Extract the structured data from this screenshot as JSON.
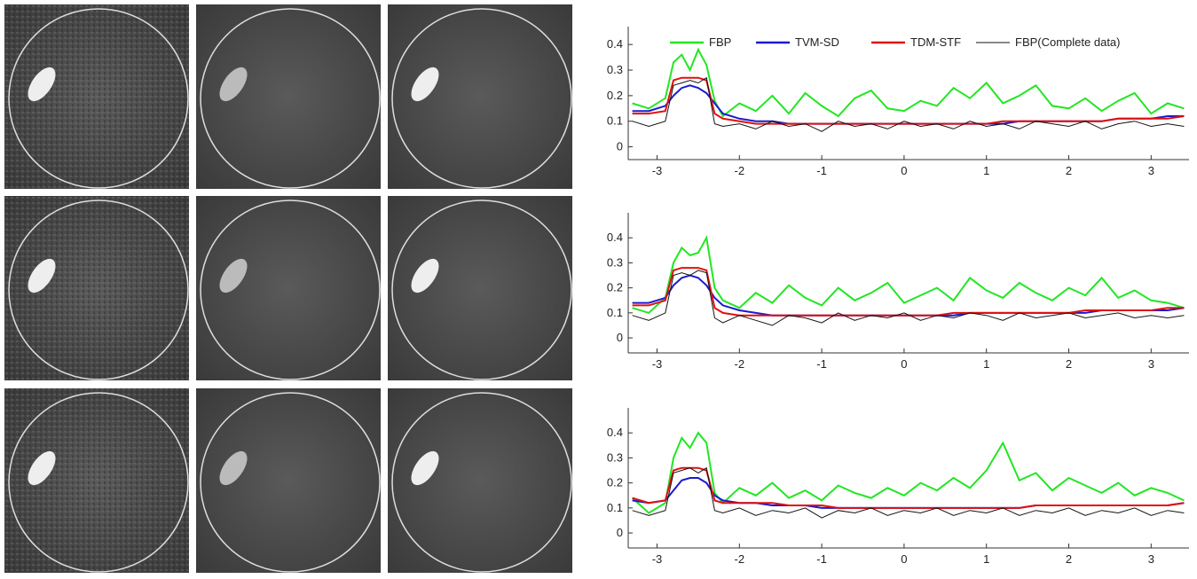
{
  "chart_data": [
    {
      "type": "line",
      "legend": "upper center",
      "x": [
        -3.3,
        -3.1,
        -2.9,
        -2.8,
        -2.7,
        -2.6,
        -2.5,
        -2.4,
        -2.3,
        -2.2,
        -2.0,
        -1.8,
        -1.6,
        -1.4,
        -1.2,
        -1.0,
        -0.8,
        -0.6,
        -0.4,
        -0.2,
        0,
        0.2,
        0.4,
        0.6,
        0.8,
        1.0,
        1.2,
        1.4,
        1.6,
        1.8,
        2.0,
        2.2,
        2.4,
        2.6,
        2.8,
        3.0,
        3.2,
        3.4
      ],
      "xlim": [
        -3.35,
        3.46
      ],
      "xticks": [
        -3,
        -2,
        -1,
        0,
        1,
        2,
        3
      ],
      "ylim": [
        -0.05,
        0.47
      ],
      "yticks": [
        0,
        0.1,
        0.2,
        0.3,
        0.4
      ],
      "series": [
        {
          "name": "FBP",
          "color": "#22e622",
          "values": [
            0.17,
            0.15,
            0.19,
            0.33,
            0.36,
            0.3,
            0.38,
            0.32,
            0.18,
            0.12,
            0.17,
            0.14,
            0.2,
            0.13,
            0.21,
            0.16,
            0.12,
            0.19,
            0.22,
            0.15,
            0.14,
            0.18,
            0.16,
            0.23,
            0.19,
            0.25,
            0.17,
            0.2,
            0.24,
            0.16,
            0.15,
            0.19,
            0.14,
            0.18,
            0.21,
            0.13,
            0.17,
            0.15
          ]
        },
        {
          "name": "TVM-SD",
          "color": "#1a1ad0",
          "values": [
            0.14,
            0.14,
            0.16,
            0.2,
            0.23,
            0.24,
            0.23,
            0.21,
            0.17,
            0.13,
            0.11,
            0.1,
            0.1,
            0.09,
            0.09,
            0.09,
            0.09,
            0.09,
            0.09,
            0.09,
            0.09,
            0.09,
            0.09,
            0.09,
            0.09,
            0.09,
            0.09,
            0.1,
            0.1,
            0.1,
            0.1,
            0.1,
            0.1,
            0.11,
            0.11,
            0.11,
            0.12,
            0.12
          ]
        },
        {
          "name": "TDM-STF",
          "color": "#e01010",
          "values": [
            0.13,
            0.13,
            0.14,
            0.26,
            0.27,
            0.27,
            0.27,
            0.26,
            0.13,
            0.11,
            0.1,
            0.09,
            0.09,
            0.09,
            0.09,
            0.09,
            0.09,
            0.09,
            0.09,
            0.09,
            0.09,
            0.09,
            0.09,
            0.09,
            0.09,
            0.09,
            0.1,
            0.1,
            0.1,
            0.1,
            0.1,
            0.1,
            0.1,
            0.11,
            0.11,
            0.11,
            0.11,
            0.12
          ]
        },
        {
          "name": "FBP(Complete data)",
          "color": "#111111",
          "values": [
            0.1,
            0.08,
            0.1,
            0.24,
            0.25,
            0.26,
            0.25,
            0.27,
            0.09,
            0.08,
            0.09,
            0.07,
            0.1,
            0.08,
            0.09,
            0.06,
            0.1,
            0.08,
            0.09,
            0.07,
            0.1,
            0.08,
            0.09,
            0.07,
            0.1,
            0.08,
            0.09,
            0.07,
            0.1,
            0.09,
            0.08,
            0.1,
            0.07,
            0.09,
            0.1,
            0.08,
            0.09,
            0.08
          ]
        }
      ]
    },
    {
      "type": "line",
      "x": [
        -3.3,
        -3.1,
        -2.9,
        -2.8,
        -2.7,
        -2.6,
        -2.5,
        -2.4,
        -2.3,
        -2.2,
        -2.0,
        -1.8,
        -1.6,
        -1.4,
        -1.2,
        -1.0,
        -0.8,
        -0.6,
        -0.4,
        -0.2,
        0,
        0.2,
        0.4,
        0.6,
        0.8,
        1.0,
        1.2,
        1.4,
        1.6,
        1.8,
        2.0,
        2.2,
        2.4,
        2.6,
        2.8,
        3.0,
        3.2,
        3.4
      ],
      "xlim": [
        -3.35,
        3.46
      ],
      "xticks": [
        -3,
        -2,
        -1,
        0,
        1,
        2,
        3
      ],
      "ylim": [
        -0.06,
        0.5
      ],
      "yticks": [
        0,
        0.1,
        0.2,
        0.3,
        0.4
      ],
      "series": [
        {
          "color": "#22e622",
          "values": [
            0.12,
            0.1,
            0.16,
            0.3,
            0.36,
            0.33,
            0.34,
            0.4,
            0.2,
            0.15,
            0.12,
            0.18,
            0.14,
            0.21,
            0.16,
            0.13,
            0.2,
            0.15,
            0.18,
            0.22,
            0.14,
            0.17,
            0.2,
            0.15,
            0.24,
            0.19,
            0.16,
            0.22,
            0.18,
            0.15,
            0.2,
            0.17,
            0.24,
            0.16,
            0.19,
            0.15,
            0.14,
            0.12
          ]
        },
        {
          "color": "#1a1ad0",
          "values": [
            0.14,
            0.14,
            0.16,
            0.21,
            0.24,
            0.25,
            0.24,
            0.21,
            0.16,
            0.13,
            0.11,
            0.1,
            0.09,
            0.09,
            0.09,
            0.09,
            0.09,
            0.09,
            0.09,
            0.09,
            0.09,
            0.09,
            0.09,
            0.09,
            0.1,
            0.1,
            0.1,
            0.1,
            0.1,
            0.1,
            0.1,
            0.1,
            0.11,
            0.11,
            0.11,
            0.11,
            0.11,
            0.12
          ]
        },
        {
          "color": "#e01010",
          "values": [
            0.13,
            0.13,
            0.15,
            0.27,
            0.28,
            0.28,
            0.28,
            0.27,
            0.12,
            0.1,
            0.09,
            0.09,
            0.09,
            0.09,
            0.09,
            0.09,
            0.09,
            0.09,
            0.09,
            0.09,
            0.09,
            0.09,
            0.09,
            0.1,
            0.1,
            0.1,
            0.1,
            0.1,
            0.1,
            0.1,
            0.1,
            0.11,
            0.11,
            0.11,
            0.11,
            0.11,
            0.12,
            0.12
          ]
        },
        {
          "color": "#111111",
          "values": [
            0.09,
            0.07,
            0.1,
            0.25,
            0.26,
            0.25,
            0.27,
            0.26,
            0.08,
            0.06,
            0.09,
            0.07,
            0.05,
            0.09,
            0.08,
            0.06,
            0.1,
            0.07,
            0.09,
            0.08,
            0.1,
            0.07,
            0.09,
            0.08,
            0.1,
            0.09,
            0.07,
            0.1,
            0.08,
            0.09,
            0.1,
            0.08,
            0.09,
            0.1,
            0.08,
            0.09,
            0.08,
            0.09
          ]
        }
      ]
    },
    {
      "type": "line",
      "x": [
        -3.3,
        -3.1,
        -2.9,
        -2.8,
        -2.7,
        -2.6,
        -2.5,
        -2.4,
        -2.3,
        -2.2,
        -2.0,
        -1.8,
        -1.6,
        -1.4,
        -1.2,
        -1.0,
        -0.8,
        -0.6,
        -0.4,
        -0.2,
        0,
        0.2,
        0.4,
        0.6,
        0.8,
        1.0,
        1.2,
        1.4,
        1.6,
        1.8,
        2.0,
        2.2,
        2.4,
        2.6,
        2.8,
        3.0,
        3.2,
        3.4
      ],
      "xlim": [
        -3.35,
        3.46
      ],
      "xticks": [
        -3,
        -2,
        -1,
        0,
        1,
        2,
        3
      ],
      "ylim": [
        -0.06,
        0.5
      ],
      "yticks": [
        0,
        0.1,
        0.2,
        0.3,
        0.4
      ],
      "series": [
        {
          "color": "#22e622",
          "values": [
            0.14,
            0.08,
            0.12,
            0.3,
            0.38,
            0.34,
            0.4,
            0.36,
            0.16,
            0.12,
            0.18,
            0.15,
            0.2,
            0.14,
            0.17,
            0.13,
            0.19,
            0.16,
            0.14,
            0.18,
            0.15,
            0.2,
            0.17,
            0.22,
            0.18,
            0.25,
            0.36,
            0.21,
            0.24,
            0.17,
            0.22,
            0.19,
            0.16,
            0.2,
            0.15,
            0.18,
            0.16,
            0.13
          ]
        },
        {
          "color": "#1a1ad0",
          "values": [
            0.13,
            0.12,
            0.13,
            0.17,
            0.21,
            0.22,
            0.22,
            0.2,
            0.15,
            0.13,
            0.12,
            0.12,
            0.11,
            0.11,
            0.11,
            0.1,
            0.1,
            0.1,
            0.1,
            0.1,
            0.1,
            0.1,
            0.1,
            0.1,
            0.1,
            0.1,
            0.1,
            0.1,
            0.11,
            0.11,
            0.11,
            0.11,
            0.11,
            0.11,
            0.11,
            0.11,
            0.11,
            0.12
          ]
        },
        {
          "color": "#e01010",
          "values": [
            0.14,
            0.12,
            0.13,
            0.25,
            0.26,
            0.26,
            0.26,
            0.25,
            0.13,
            0.12,
            0.12,
            0.12,
            0.12,
            0.11,
            0.11,
            0.11,
            0.1,
            0.1,
            0.1,
            0.1,
            0.1,
            0.1,
            0.1,
            0.1,
            0.1,
            0.1,
            0.1,
            0.1,
            0.11,
            0.11,
            0.11,
            0.11,
            0.11,
            0.11,
            0.11,
            0.11,
            0.11,
            0.12
          ]
        },
        {
          "color": "#111111",
          "values": [
            0.09,
            0.07,
            0.09,
            0.24,
            0.25,
            0.26,
            0.24,
            0.26,
            0.09,
            0.08,
            0.1,
            0.07,
            0.09,
            0.08,
            0.1,
            0.06,
            0.09,
            0.08,
            0.1,
            0.07,
            0.09,
            0.08,
            0.1,
            0.07,
            0.09,
            0.08,
            0.1,
            0.07,
            0.09,
            0.08,
            0.1,
            0.07,
            0.09,
            0.08,
            0.1,
            0.07,
            0.09,
            0.08
          ]
        }
      ]
    }
  ]
}
